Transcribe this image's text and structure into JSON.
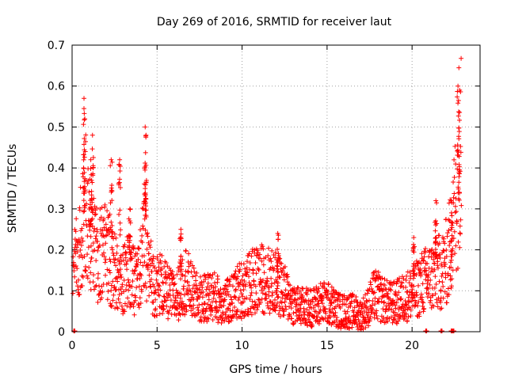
{
  "chart_data": {
    "type": "scatter",
    "title": "Day 269 of 2016, SRMTID for receiver laut",
    "xlabel": "GPS time / hours",
    "ylabel": "SRMTID / TECUs",
    "xlim": [
      0,
      24
    ],
    "ylim": [
      0,
      0.7
    ],
    "xticks": [
      0,
      5,
      10,
      15,
      20
    ],
    "yticks": [
      0,
      0.1,
      0.2,
      0.3,
      0.4,
      0.5,
      0.6,
      0.7
    ],
    "grid": true,
    "marker": "plus",
    "color": "#ff0000",
    "series": [
      {
        "name": "SRMTID",
        "envelope_x": [
          0.0,
          0.1,
          0.3,
          0.5,
          0.7,
          0.9,
          1.1,
          1.3,
          1.5,
          1.7,
          1.9,
          2.1,
          2.3,
          2.5,
          2.7,
          2.9,
          3.1,
          3.3,
          3.5,
          3.7,
          3.9,
          4.1,
          4.3,
          4.5,
          4.7,
          4.9,
          5.2,
          5.5,
          5.8,
          6.1,
          6.4,
          6.7,
          7.0,
          7.4,
          7.8,
          8.2,
          8.6,
          9.0,
          9.4,
          9.8,
          10.2,
          10.6,
          11.0,
          11.4,
          11.8,
          12.2,
          12.6,
          13.0,
          13.4,
          13.8,
          14.2,
          14.6,
          15.0,
          15.4,
          15.8,
          16.2,
          16.6,
          17.0,
          17.4,
          17.8,
          18.2,
          18.6,
          19.0,
          19.4,
          19.8,
          20.2,
          20.6,
          21.0,
          21.4,
          21.8,
          22.1,
          22.4,
          22.7,
          22.9
        ],
        "envelope_y": [
          0.14,
          0.15,
          0.18,
          0.22,
          0.3,
          0.26,
          0.22,
          0.2,
          0.18,
          0.19,
          0.21,
          0.19,
          0.17,
          0.15,
          0.13,
          0.12,
          0.13,
          0.15,
          0.13,
          0.12,
          0.13,
          0.18,
          0.22,
          0.16,
          0.13,
          0.11,
          0.12,
          0.1,
          0.09,
          0.08,
          0.11,
          0.13,
          0.1,
          0.08,
          0.08,
          0.09,
          0.08,
          0.07,
          0.08,
          0.1,
          0.11,
          0.12,
          0.13,
          0.13,
          0.12,
          0.11,
          0.09,
          0.07,
          0.06,
          0.06,
          0.06,
          0.07,
          0.07,
          0.06,
          0.05,
          0.05,
          0.05,
          0.04,
          0.06,
          0.09,
          0.08,
          0.07,
          0.07,
          0.08,
          0.09,
          0.1,
          0.12,
          0.13,
          0.14,
          0.15,
          0.18,
          0.25,
          0.38,
          0.55
        ],
        "spikes": [
          {
            "x": 0.7,
            "y": 0.57
          },
          {
            "x": 0.75,
            "y": 0.52
          },
          {
            "x": 1.2,
            "y": 0.48
          },
          {
            "x": 1.1,
            "y": 0.42
          },
          {
            "x": 2.3,
            "y": 0.42
          },
          {
            "x": 2.8,
            "y": 0.42
          },
          {
            "x": 3.4,
            "y": 0.3
          },
          {
            "x": 4.3,
            "y": 0.5
          },
          {
            "x": 4.35,
            "y": 0.48
          },
          {
            "x": 6.4,
            "y": 0.25
          },
          {
            "x": 12.1,
            "y": 0.24
          },
          {
            "x": 20.1,
            "y": 0.23
          },
          {
            "x": 21.4,
            "y": 0.32
          },
          {
            "x": 22.3,
            "y": 0.32
          },
          {
            "x": 22.7,
            "y": 0.6
          },
          {
            "x": 22.8,
            "y": 0.59
          }
        ],
        "zero_points_x": [
          0.1,
          20.8,
          21.7,
          22.3,
          22.4
        ]
      }
    ]
  }
}
